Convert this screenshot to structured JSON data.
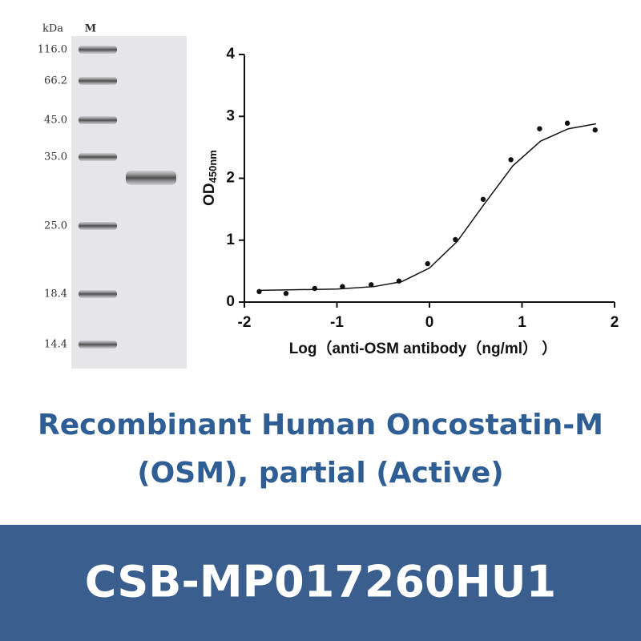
{
  "gel": {
    "unit_label": "kDa",
    "lane_label": "M",
    "markers": [
      "116.0",
      "66.2",
      "45.0",
      "35.0",
      "25.0",
      "18.4",
      "14.4"
    ]
  },
  "chart_data": {
    "type": "scatter",
    "y_label": "OD",
    "y_label_sub": "450nm",
    "x_label": "Log（anti-OSM antibody（ng/ml） ）",
    "xlim": [
      -2,
      2
    ],
    "xticks": [
      -2,
      -1,
      0,
      1,
      2
    ],
    "ylim": [
      0,
      4
    ],
    "yticks": [
      0,
      1,
      2,
      3,
      4
    ],
    "series": [
      {
        "kind": "points",
        "color": "#111111",
        "x": [
          -1.84,
          -1.55,
          -1.24,
          -0.94,
          -0.63,
          -0.33,
          -0.02,
          0.28,
          0.58,
          0.88,
          1.19,
          1.49,
          1.79
        ],
        "values": [
          0.17,
          0.14,
          0.22,
          0.25,
          0.28,
          0.34,
          0.62,
          1.01,
          1.66,
          2.3,
          2.8,
          2.89,
          2.78
        ]
      },
      {
        "kind": "line",
        "color": "#111111",
        "x": [
          -1.84,
          -1.4,
          -1.0,
          -0.6,
          -0.3,
          0.0,
          0.3,
          0.6,
          0.9,
          1.2,
          1.5,
          1.8
        ],
        "values": [
          0.19,
          0.2,
          0.21,
          0.25,
          0.33,
          0.55,
          0.98,
          1.6,
          2.2,
          2.6,
          2.8,
          2.88
        ]
      }
    ]
  },
  "title": {
    "line1": "Recombinant Human Oncostatin-M",
    "line2": "(OSM), partial (Active)"
  },
  "footer": {
    "code": "CSB-MP017260HU1"
  }
}
